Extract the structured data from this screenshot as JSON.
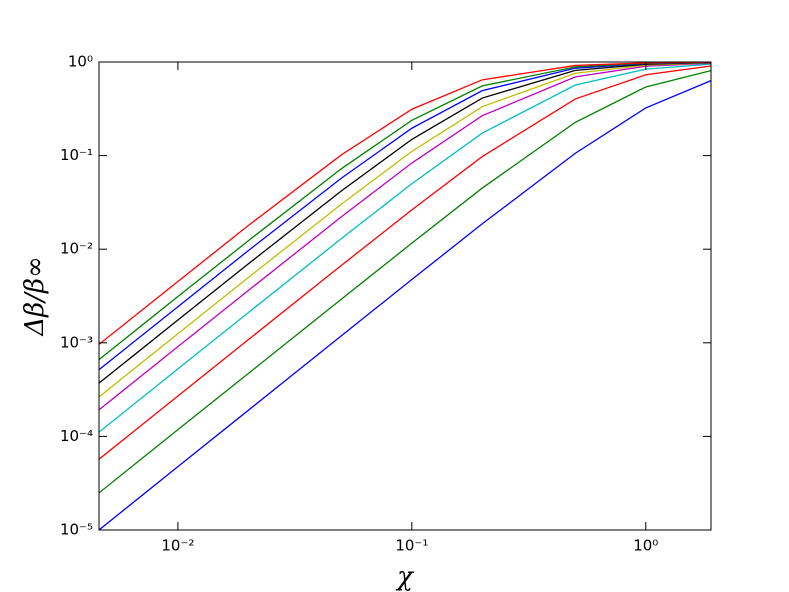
{
  "chart_data": {
    "type": "line",
    "x_label": "χ",
    "y_label": "Δβ/β∞",
    "xscale": "log",
    "yscale": "log",
    "xlim": [
      0.0046,
      1.9
    ],
    "ylim": [
      1e-05,
      1
    ],
    "xticks": [
      {
        "value": 0.01,
        "label": "10⁻²"
      },
      {
        "value": 0.1,
        "label": "10⁻¹"
      },
      {
        "value": 1,
        "label": "10⁰"
      }
    ],
    "yticks": [
      {
        "value": 1e-05,
        "label": "10⁻⁵"
      },
      {
        "value": 0.0001,
        "label": "10⁻⁴"
      },
      {
        "value": 0.001,
        "label": "10⁻³"
      },
      {
        "value": 0.01,
        "label": "10⁻²"
      },
      {
        "value": 0.1,
        "label": "10⁻¹"
      },
      {
        "value": 1,
        "label": "10⁰"
      }
    ],
    "x": [
      0.0046,
      0.01,
      0.02,
      0.05,
      0.1,
      0.2,
      0.5,
      1,
      1.9
    ],
    "series": [
      {
        "color": "#0000ff",
        "values": [
          1e-05,
          4.76e-05,
          0.00019,
          0.00119,
          0.00474,
          0.0187,
          0.106,
          0.323,
          0.632
        ]
      },
      {
        "color": "#008000",
        "values": [
          2.49e-05,
          0.000118,
          0.00047,
          0.00293,
          0.0116,
          0.045,
          0.227,
          0.541,
          0.809
        ]
      },
      {
        "color": "#ff0000",
        "values": [
          5.7e-05,
          0.00027,
          0.00108,
          0.00671,
          0.0263,
          0.0976,
          0.403,
          0.73,
          0.907
        ]
      },
      {
        "color": "#00bfbf",
        "values": [
          0.000111,
          0.000526,
          0.0021,
          0.013,
          0.05,
          0.174,
          0.568,
          0.84,
          0.95
        ]
      },
      {
        "color": "#bf00bf",
        "values": [
          0.000192,
          0.00091,
          0.00362,
          0.0222,
          0.0833,
          0.267,
          0.694,
          0.901,
          0.97
        ]
      },
      {
        "color": "#bfbf00",
        "values": [
          0.000264,
          0.00125,
          0.00498,
          0.0303,
          0.111,
          0.333,
          0.758,
          0.926,
          0.978
        ]
      },
      {
        "color": "#000000",
        "values": [
          0.000371,
          0.00175,
          0.00697,
          0.042,
          0.149,
          0.412,
          0.814,
          0.946,
          0.984
        ]
      },
      {
        "color": "#0000ff",
        "values": [
          0.000516,
          0.00243,
          0.00966,
          0.0575,
          0.196,
          0.494,
          0.859,
          0.961,
          0.989
        ]
      },
      {
        "color": "#008000",
        "values": [
          0.000661,
          0.00312,
          0.0123,
          0.0725,
          0.238,
          0.556,
          0.887,
          0.969,
          0.991
        ]
      },
      {
        "color": "#ff0000",
        "values": [
          0.000961,
          0.00452,
          0.0179,
          0.102,
          0.313,
          0.645,
          0.919,
          0.978,
          0.994
        ]
      }
    ]
  }
}
